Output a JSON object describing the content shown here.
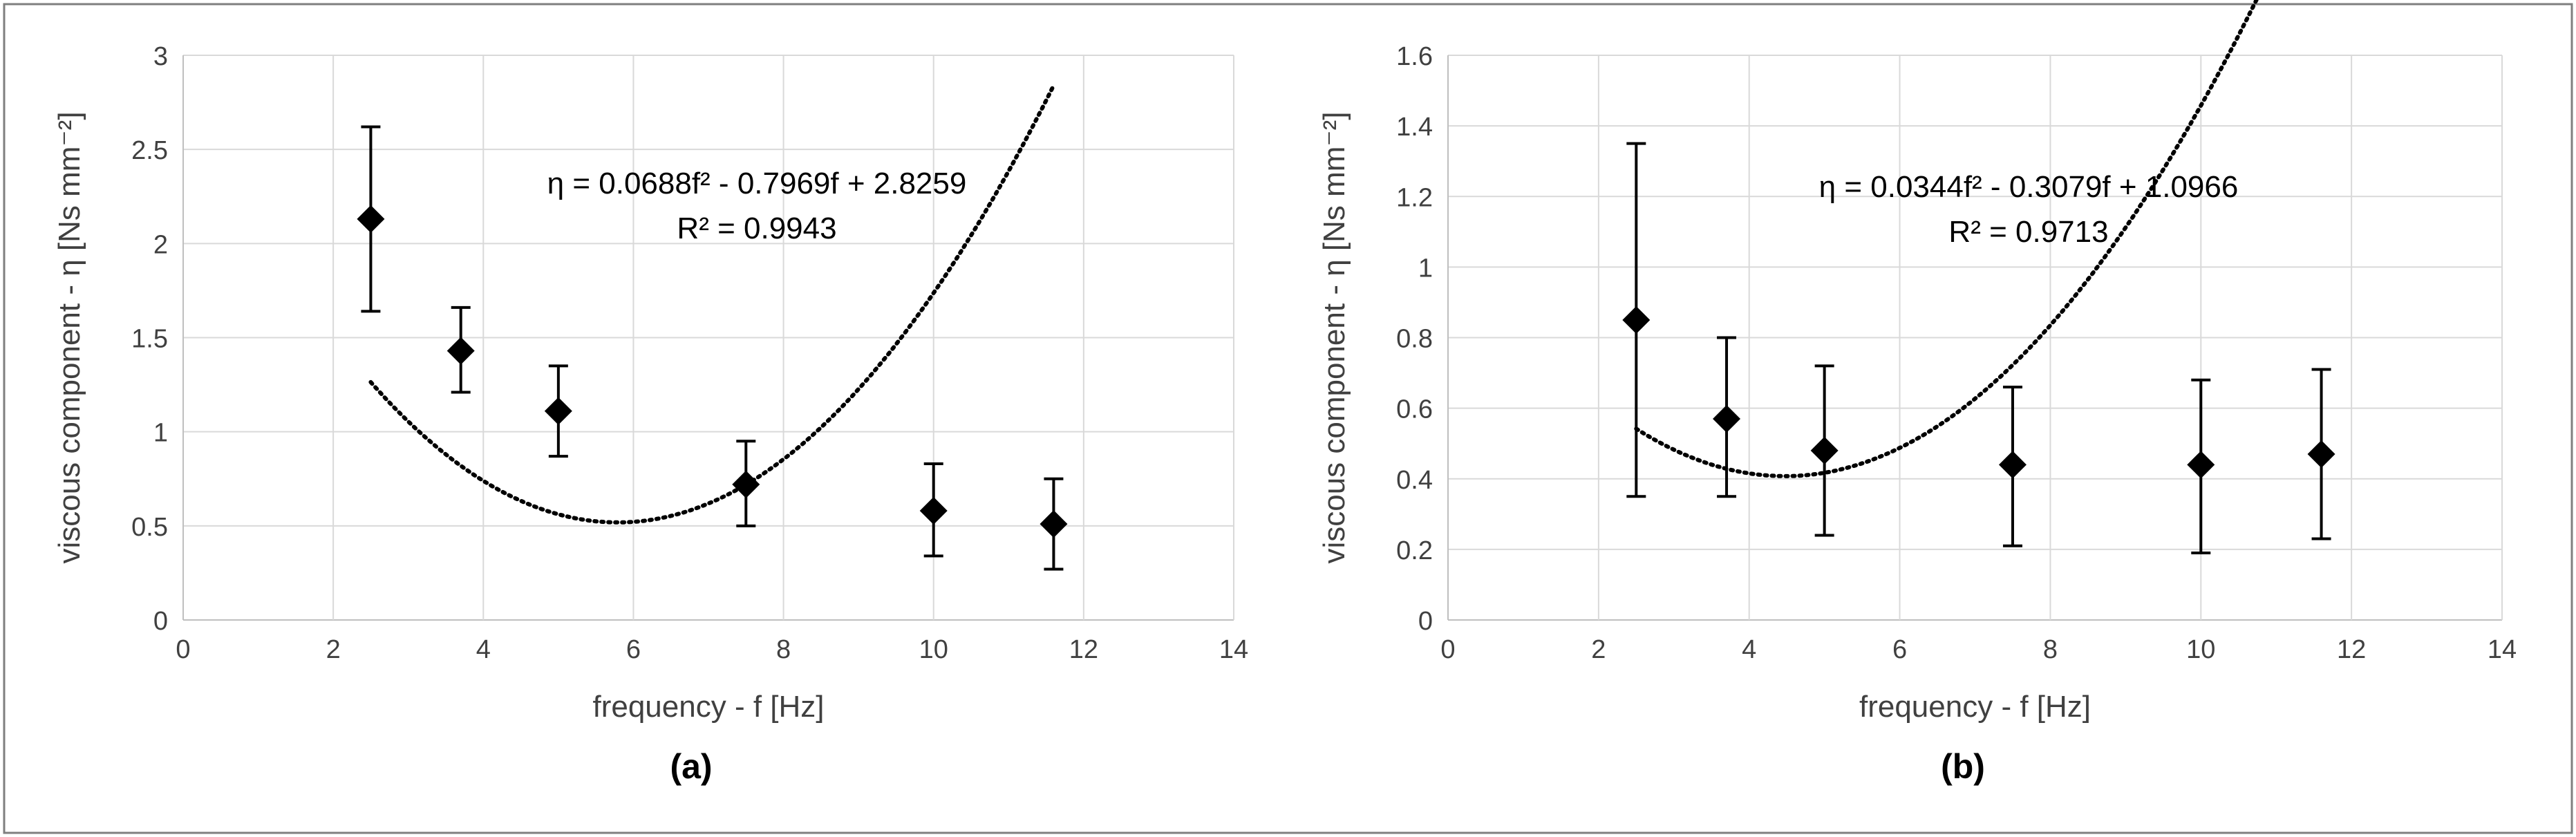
{
  "chart_data": [
    {
      "type": "scatter",
      "panel_label": "(a)",
      "xlabel": "frequency - f [Hz]",
      "ylabel": "viscous component - η [Ns mm⁻²]",
      "xlim": [
        0,
        14
      ],
      "ylim": [
        0,
        3
      ],
      "x_ticks": [
        "0",
        "2",
        "4",
        "6",
        "8",
        "10",
        "12",
        "14"
      ],
      "y_ticks": [
        "0",
        "0.5",
        "1",
        "1.5",
        "2",
        "2.5",
        "3"
      ],
      "grid": true,
      "points": [
        {
          "x": 2.5,
          "y": 2.13,
          "err_low": 1.64,
          "err_high": 2.62
        },
        {
          "x": 3.7,
          "y": 1.43,
          "err_low": 1.21,
          "err_high": 1.66
        },
        {
          "x": 5.0,
          "y": 1.11,
          "err_low": 0.87,
          "err_high": 1.35
        },
        {
          "x": 7.5,
          "y": 0.72,
          "err_low": 0.5,
          "err_high": 0.95
        },
        {
          "x": 10.0,
          "y": 0.58,
          "err_low": 0.34,
          "err_high": 0.83
        },
        {
          "x": 11.6,
          "y": 0.51,
          "err_low": 0.27,
          "err_high": 0.75
        }
      ],
      "trendline": {
        "type": "polynomial",
        "a": 0.0688,
        "b": -0.7969,
        "c": 2.8259,
        "x_range": [
          2.5,
          11.6
        ]
      },
      "equation": "η = 0.0688f² - 0.7969f + 2.8259",
      "r_squared": "R² = 0.9943"
    },
    {
      "type": "scatter",
      "panel_label": "(b)",
      "xlabel": "frequency - f [Hz]",
      "ylabel": "viscous component - η [Ns mm⁻²]",
      "xlim": [
        0,
        14
      ],
      "ylim": [
        0,
        1.6
      ],
      "x_ticks": [
        "0",
        "2",
        "4",
        "6",
        "8",
        "10",
        "12",
        "14"
      ],
      "y_ticks": [
        "0",
        "0.2",
        "0.4",
        "0.6",
        "0.8",
        "1",
        "1.2",
        "1.4",
        "1.6"
      ],
      "grid": true,
      "points": [
        {
          "x": 2.5,
          "y": 0.85,
          "err_low": 0.35,
          "err_high": 1.35
        },
        {
          "x": 3.7,
          "y": 0.57,
          "err_low": 0.35,
          "err_high": 0.8
        },
        {
          "x": 5.0,
          "y": 0.48,
          "err_low": 0.24,
          "err_high": 0.72
        },
        {
          "x": 7.5,
          "y": 0.44,
          "err_low": 0.21,
          "err_high": 0.66
        },
        {
          "x": 10.0,
          "y": 0.44,
          "err_low": 0.19,
          "err_high": 0.68
        },
        {
          "x": 11.6,
          "y": 0.47,
          "err_low": 0.23,
          "err_high": 0.71
        }
      ],
      "trendline": {
        "type": "polynomial",
        "a": 0.0344,
        "b": -0.3079,
        "c": 1.0966,
        "x_range": [
          2.5,
          11.6
        ]
      },
      "equation": "η = 0.0344f² - 0.3079f + 1.0966",
      "r_squared": "R² = 0.9713"
    }
  ],
  "colors": {
    "frame": "#7f7f7f",
    "grid": "#d9d9d9",
    "axis": "#bfbfbf",
    "marker": "#000000",
    "trendline": "#000000",
    "text": "#404040"
  }
}
